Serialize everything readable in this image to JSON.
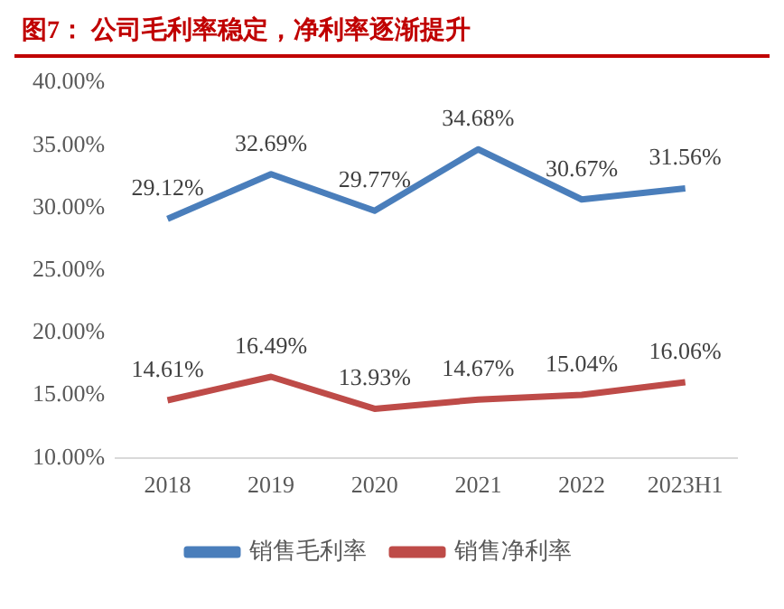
{
  "chart_data": {
    "type": "line",
    "title": "图7：  公司毛利率稳定，净利率逐渐提升",
    "categories": [
      "2018",
      "2019",
      "2020",
      "2021",
      "2022",
      "2023H1"
    ],
    "series": [
      {
        "name": "销售毛利率",
        "color": "#4a7ebb",
        "values": [
          29.12,
          32.69,
          29.77,
          34.68,
          30.67,
          31.56
        ],
        "value_labels": [
          "29.12%",
          "32.69%",
          "29.77%",
          "34.68%",
          "30.67%",
          "31.56%"
        ]
      },
      {
        "name": "销售净利率",
        "color": "#be4b48",
        "values": [
          14.61,
          16.49,
          13.93,
          14.67,
          15.04,
          16.06
        ],
        "value_labels": [
          "14.61%",
          "16.49%",
          "13.93%",
          "14.67%",
          "15.04%",
          "16.06%"
        ]
      }
    ],
    "ylim": [
      10,
      40
    ],
    "yticks": [
      {
        "value": 10,
        "label": "10.00%"
      },
      {
        "value": 15,
        "label": "15.00%"
      },
      {
        "value": 20,
        "label": "20.00%"
      },
      {
        "value": 25,
        "label": "25.00%"
      },
      {
        "value": 30,
        "label": "30.00%"
      },
      {
        "value": 35,
        "label": "35.00%"
      },
      {
        "value": 40,
        "label": "40.00%"
      }
    ],
    "grid": false,
    "legend": "bottom",
    "marker": "none",
    "line_style": "solid"
  }
}
